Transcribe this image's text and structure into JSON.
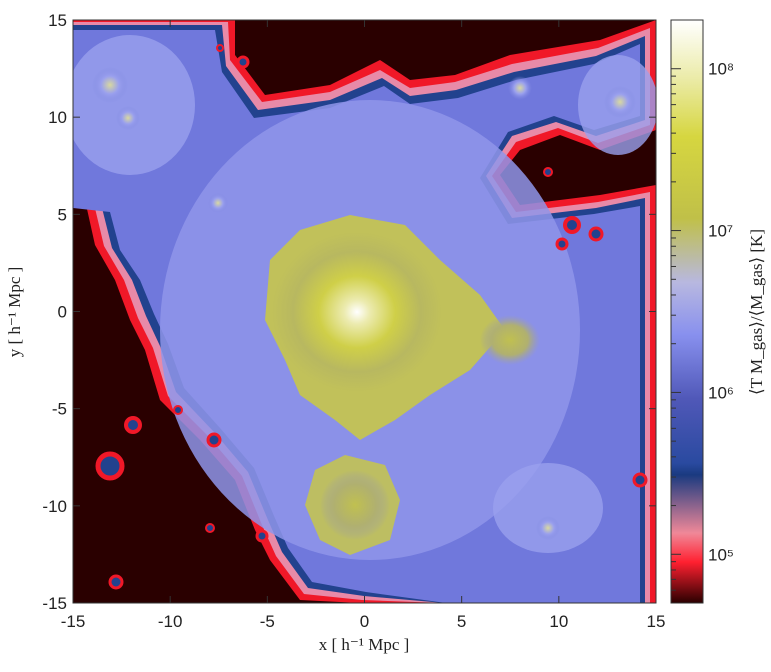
{
  "chart_data": {
    "type": "heatmap",
    "title": "",
    "xlabel": "x [ h⁻¹ Mpc ]",
    "ylabel": "y [ h⁻¹ Mpc ]",
    "colorbar_label": "⟨T M_gas⟩/⟨M_gas⟩ [K]",
    "xlim": [
      -15,
      15
    ],
    "ylim": [
      -15,
      15
    ],
    "x_ticks": [
      -15,
      -10,
      -5,
      0,
      5,
      10,
      15
    ],
    "y_ticks": [
      -15,
      -10,
      -5,
      0,
      5,
      10,
      15
    ],
    "colorbar": {
      "scale": "log",
      "range": [
        50000,
        200000000
      ],
      "ticks": [
        {
          "value": 100000,
          "label": "10⁵"
        },
        {
          "value": 1000000,
          "label": "10⁶"
        },
        {
          "value": 10000000,
          "label": "10⁷"
        },
        {
          "value": 100000000,
          "label": "10⁸"
        }
      ],
      "colors": [
        "#2a0000",
        "#ff2030",
        "#f0a0b0",
        "#1a3a80",
        "#6670d8",
        "#b0b8ff",
        "#c8c838",
        "#e8e880",
        "#ffffff"
      ]
    },
    "grid": false,
    "legend": "colorbar-right"
  }
}
